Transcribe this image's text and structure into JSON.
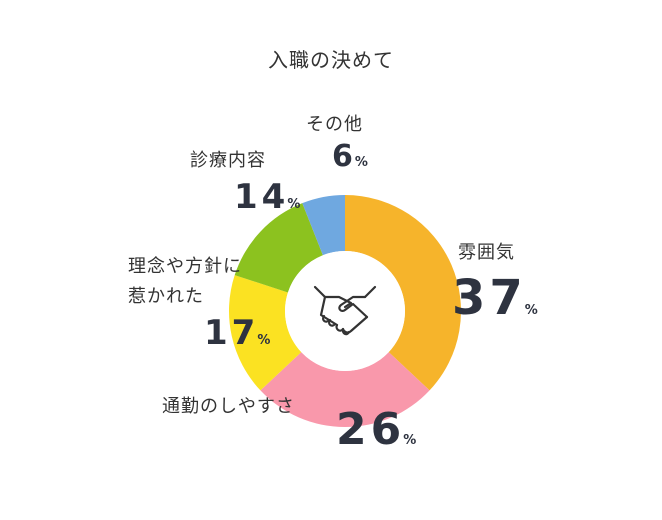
{
  "chart_data": {
    "type": "pie",
    "title": "入職の決めて",
    "categories": [
      "雰囲気",
      "通勤のしやすさ",
      "理念や方針に惹かれた",
      "診療内容",
      "その他"
    ],
    "values": [
      37,
      26,
      17,
      14,
      6
    ],
    "unit": "%",
    "colors": [
      "#f6b42b",
      "#f998ab",
      "#fbe222",
      "#8cc21f",
      "#6fa8e0"
    ],
    "center_icon": "handshake-icon"
  },
  "labels": {
    "atmosphere": {
      "name": "雰囲気",
      "value": "37",
      "unit": "%"
    },
    "commute": {
      "name": "通勤のしやすさ",
      "value": "26",
      "unit": "%"
    },
    "policy": {
      "name_line1": "理念や方針に",
      "name_line2": "惹かれた",
      "value": "17",
      "unit": "%"
    },
    "medical": {
      "name": "診療内容",
      "value": "14",
      "unit": "%"
    },
    "other": {
      "name": "その他",
      "value": "6",
      "unit": "%"
    }
  }
}
